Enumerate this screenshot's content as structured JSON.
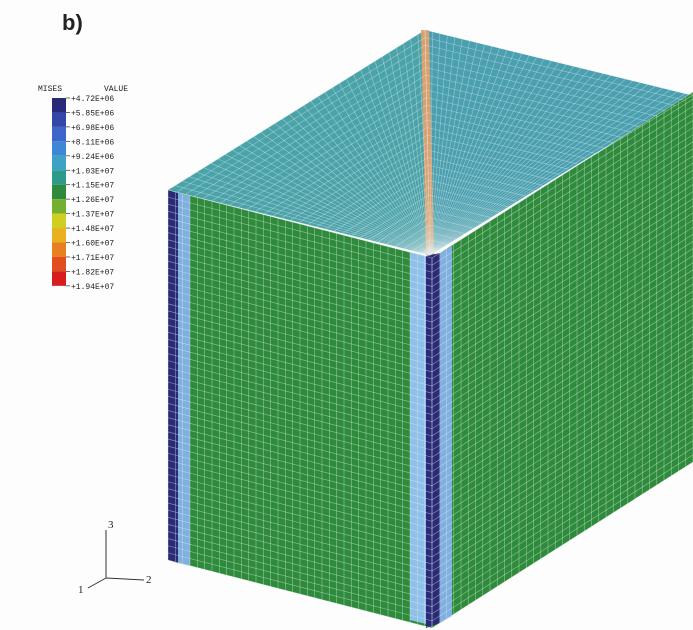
{
  "figure_label": "b)",
  "legend": {
    "header": [
      "MISES",
      "VALUE"
    ],
    "values": [
      "+4.72E+06",
      "+5.85E+06",
      "+6.98E+06",
      "+8.11E+06",
      "+9.24E+06",
      "+1.03E+07",
      "+1.15E+07",
      "+1.26E+07",
      "+1.37E+07",
      "+1.48E+07",
      "+1.60E+07",
      "+1.71E+07",
      "+1.82E+07",
      "+1.94E+07"
    ],
    "colors": [
      "#2b2a78",
      "#3446a8",
      "#3d66c8",
      "#3f86d4",
      "#3ea2c6",
      "#2f9a8a",
      "#2e8b3e",
      "#74b030",
      "#cfcf22",
      "#e9b020",
      "#e68020",
      "#e04d1e",
      "#d61e1e"
    ]
  },
  "triad": {
    "axis3": "3",
    "axis2": "2",
    "axis1": "1"
  }
}
